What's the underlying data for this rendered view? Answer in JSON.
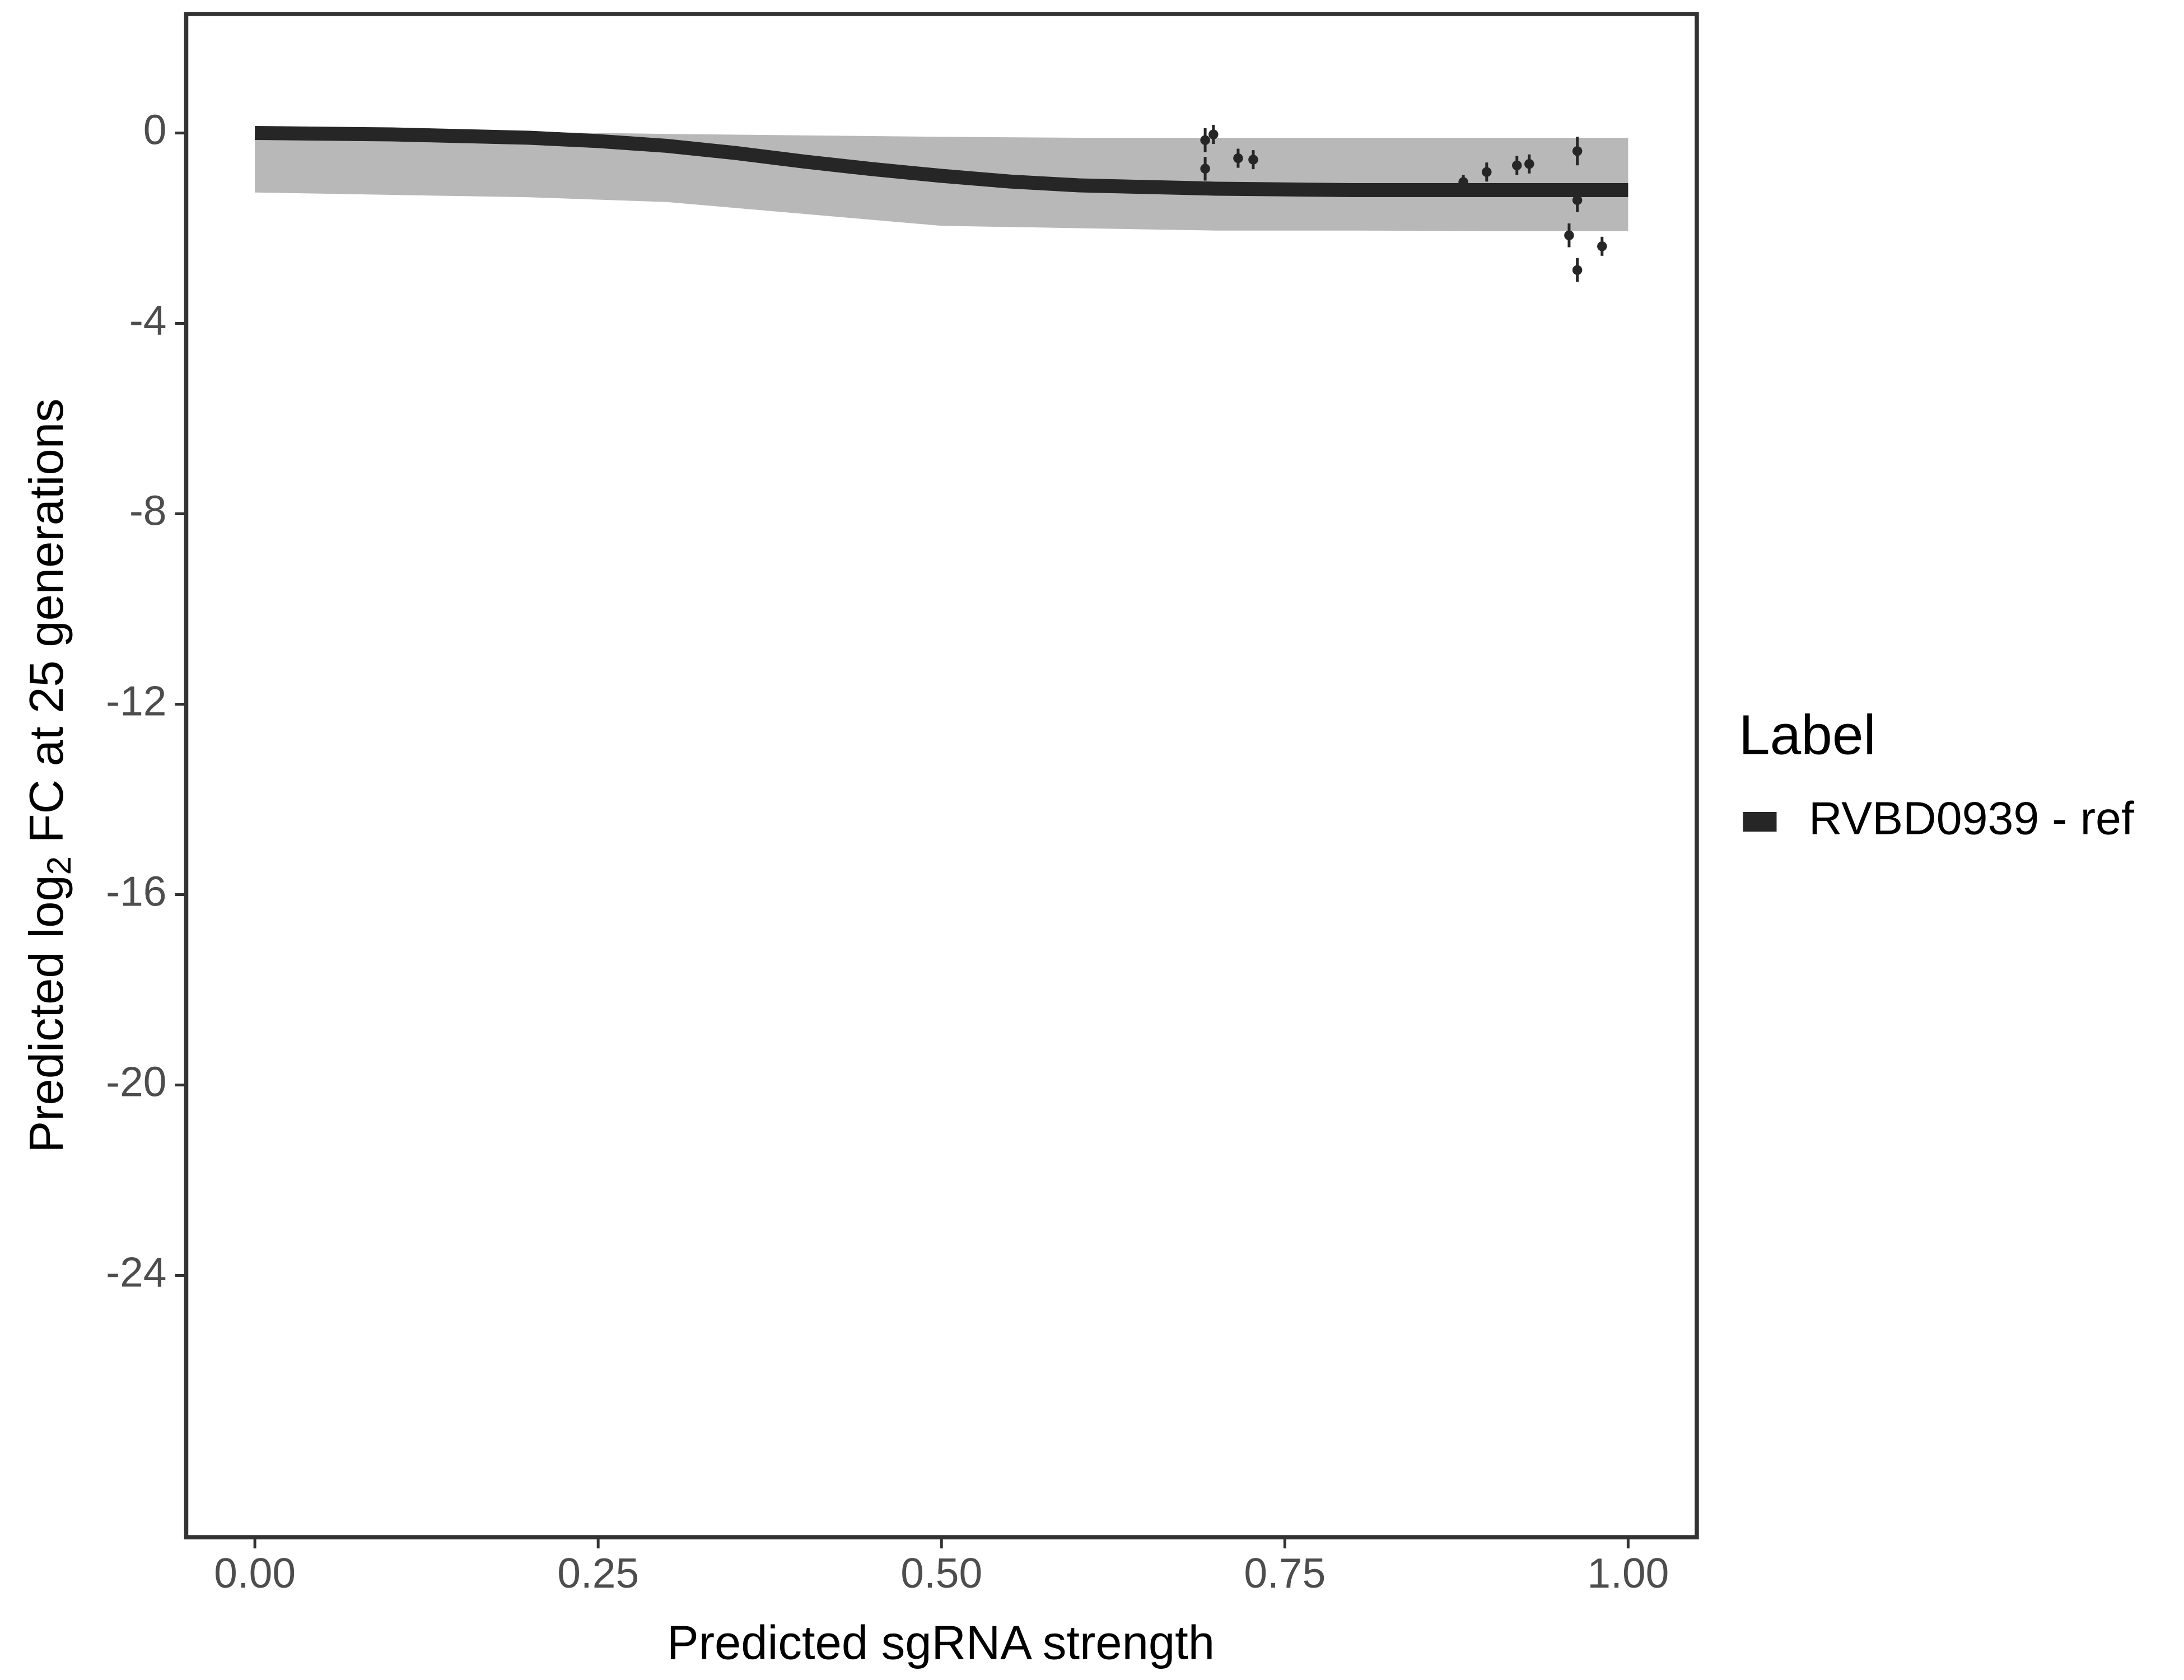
{
  "chart_data": {
    "type": "line",
    "x_label": "Predicted sgRNA strength",
    "y_label": [
      "Predicted  log",
      "2",
      " FC at 25 generations"
    ],
    "legend_title": "Label",
    "legend_position": "right",
    "xlim": [
      -0.05,
      1.05
    ],
    "ylim": [
      -29.5,
      2.5
    ],
    "xticks": [
      {
        "value": 0,
        "label": "0.00"
      },
      {
        "value": 0.25,
        "label": "0.25"
      },
      {
        "value": 0.5,
        "label": "0.50"
      },
      {
        "value": 0.75,
        "label": "0.75"
      },
      {
        "value": 1,
        "label": "1.00"
      }
    ],
    "yticks": [
      0,
      -4,
      -8,
      -12,
      -16,
      -20,
      -24
    ],
    "band": {
      "color": "#a0a0a0",
      "x": [
        0,
        0.1,
        0.2,
        0.3,
        0.4,
        0.5,
        0.6,
        0.7,
        0.8,
        0.9,
        1
      ],
      "upper": [
        0.05,
        0.05,
        0.02,
        -0.02,
        -0.05,
        -0.08,
        -0.1,
        -0.1,
        -0.1,
        -0.1,
        -0.1
      ],
      "lower": [
        -1.25,
        -1.3,
        -1.35,
        -1.45,
        -1.7,
        -1.95,
        -2.0,
        -2.05,
        -2.05,
        -2.06,
        -2.06
      ]
    },
    "series": [
      {
        "name": "RVBD0939 - ref",
        "color": "#262626",
        "x": [
          0,
          0.1,
          0.2,
          0.25,
          0.3,
          0.35,
          0.4,
          0.45,
          0.5,
          0.55,
          0.6,
          0.7,
          0.8,
          0.9,
          1
        ],
        "values": [
          0,
          -0.03,
          -0.1,
          -0.17,
          -0.27,
          -0.42,
          -0.6,
          -0.76,
          -0.9,
          -1.02,
          -1.1,
          -1.17,
          -1.2,
          -1.2,
          -1.2
        ]
      }
    ],
    "points": {
      "color": "#262626",
      "x": [
        0.692,
        0.698,
        0.692,
        0.716,
        0.727,
        0.88,
        0.897,
        0.919,
        0.928,
        0.963,
        0.963,
        0.957,
        0.963,
        0.981
      ],
      "values": [
        -0.15,
        -0.03,
        -0.75,
        -0.53,
        -0.56,
        -1.03,
        -0.82,
        -0.68,
        -0.65,
        -0.38,
        -1.41,
        -2.15,
        -2.88,
        -2.38
      ],
      "errors": [
        0.25,
        0.2,
        0.25,
        0.2,
        0.2,
        0.15,
        0.2,
        0.2,
        0.2,
        0.3,
        0.25,
        0.25,
        0.25,
        0.2
      ]
    }
  }
}
